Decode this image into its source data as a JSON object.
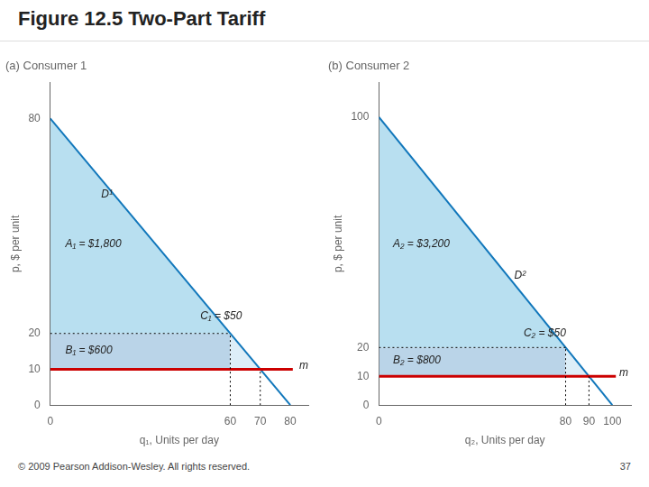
{
  "title": "Figure 12.5 Two-Part Tariff",
  "annotations": [
    "© 2009 Pearson Addison-Wesley. All rights reserved.",
    "37"
  ],
  "chart_data": [
    {
      "type": "line",
      "title": "(a) Consumer 1",
      "xlabel": "q₁, Units per day",
      "ylabel": "p, $ per unit",
      "xlim": [
        0,
        86
      ],
      "ylim": [
        0,
        90
      ],
      "xticks": [
        0,
        60,
        70,
        80
      ],
      "yticks": [
        0,
        10,
        20,
        80
      ],
      "grid": false,
      "series": [
        {
          "type": "area",
          "x": [
            0,
            60
          ],
          "values": [
            80,
            20
          ],
          "base": 20,
          "color": "#b8dff0"
        },
        {
          "type": "area",
          "x": [
            0,
            60
          ],
          "values": [
            20,
            20
          ],
          "base": 10,
          "color": "#bad4e8"
        },
        {
          "type": "area",
          "x": [
            60,
            70
          ],
          "values": [
            20,
            10
          ],
          "base": 10,
          "color": "#ddeef8"
        },
        {
          "type": "line",
          "x": [
            0,
            80.84
          ],
          "values": [
            10,
            10
          ],
          "color": "#cc0000",
          "line_style": "solid"
        },
        {
          "type": "line",
          "x": [
            0,
            80
          ],
          "values": [
            80,
            0
          ],
          "color": "#1177bb",
          "line_style": "solid"
        },
        {
          "type": "line",
          "x": [
            60,
            60
          ],
          "values": [
            0,
            20
          ],
          "color": "#000000",
          "line_style": "dotted"
        },
        {
          "type": "line",
          "x": [
            70,
            70
          ],
          "values": [
            0,
            10
          ],
          "color": "#000000",
          "line_style": "dotted"
        },
        {
          "type": "line",
          "x": [
            0,
            60
          ],
          "values": [
            20,
            20
          ],
          "color": "#000000",
          "line_style": "dotted"
        }
      ],
      "annotations": [
        {
          "text": "D¹",
          "x": 17,
          "y": 58
        },
        {
          "text": "A₁ = $1,800",
          "x": 5,
          "y": 44
        },
        {
          "text": "B₁ = $600",
          "x": 5,
          "y": 14.5
        },
        {
          "text": "C₁ = $50",
          "x": 50,
          "y": 24
        },
        {
          "text": "m",
          "x": 83,
          "y": 10
        }
      ]
    },
    {
      "type": "line",
      "title": "(b) Consumer 2",
      "xlabel": "q₂, Units per day",
      "ylabel": "p, $ per unit",
      "xlim": [
        0,
        108
      ],
      "ylim": [
        0,
        112
      ],
      "xticks": [
        0,
        80,
        90,
        100
      ],
      "yticks": [
        0,
        10,
        20,
        100
      ],
      "grid": false,
      "series": [
        {
          "type": "area",
          "x": [
            0,
            80
          ],
          "values": [
            100,
            20
          ],
          "base": 20,
          "color": "#b8dff0"
        },
        {
          "type": "area",
          "x": [
            0,
            80
          ],
          "values": [
            20,
            20
          ],
          "base": 10,
          "color": "#bad4e8"
        },
        {
          "type": "area",
          "x": [
            80,
            90
          ],
          "values": [
            20,
            10
          ],
          "base": 10,
          "color": "#ddeef8"
        },
        {
          "type": "line",
          "x": [
            0,
            101.52
          ],
          "values": [
            10,
            10
          ],
          "color": "#cc0000",
          "line_style": "solid"
        },
        {
          "type": "line",
          "x": [
            0,
            100
          ],
          "values": [
            100,
            0
          ],
          "color": "#1177bb",
          "line_style": "solid"
        },
        {
          "type": "line",
          "x": [
            80,
            80
          ],
          "values": [
            0,
            20
          ],
          "color": "#000000",
          "line_style": "dotted"
        },
        {
          "type": "line",
          "x": [
            90,
            90
          ],
          "values": [
            0,
            10
          ],
          "color": "#000000",
          "line_style": "dotted"
        },
        {
          "type": "line",
          "x": [
            0,
            80
          ],
          "values": [
            20,
            20
          ],
          "color": "#000000",
          "line_style": "dotted"
        }
      ],
      "annotations": [
        {
          "text": "D²",
          "x": 58,
          "y": 44
        },
        {
          "text": "A₂ = $3,200",
          "x": 6,
          "y": 55
        },
        {
          "text": "B₂ = $800",
          "x": 6,
          "y": 14.5
        },
        {
          "text": "C₂ = $50",
          "x": 62,
          "y": 24
        },
        {
          "text": "m",
          "x": 103,
          "y": 10
        }
      ]
    }
  ]
}
